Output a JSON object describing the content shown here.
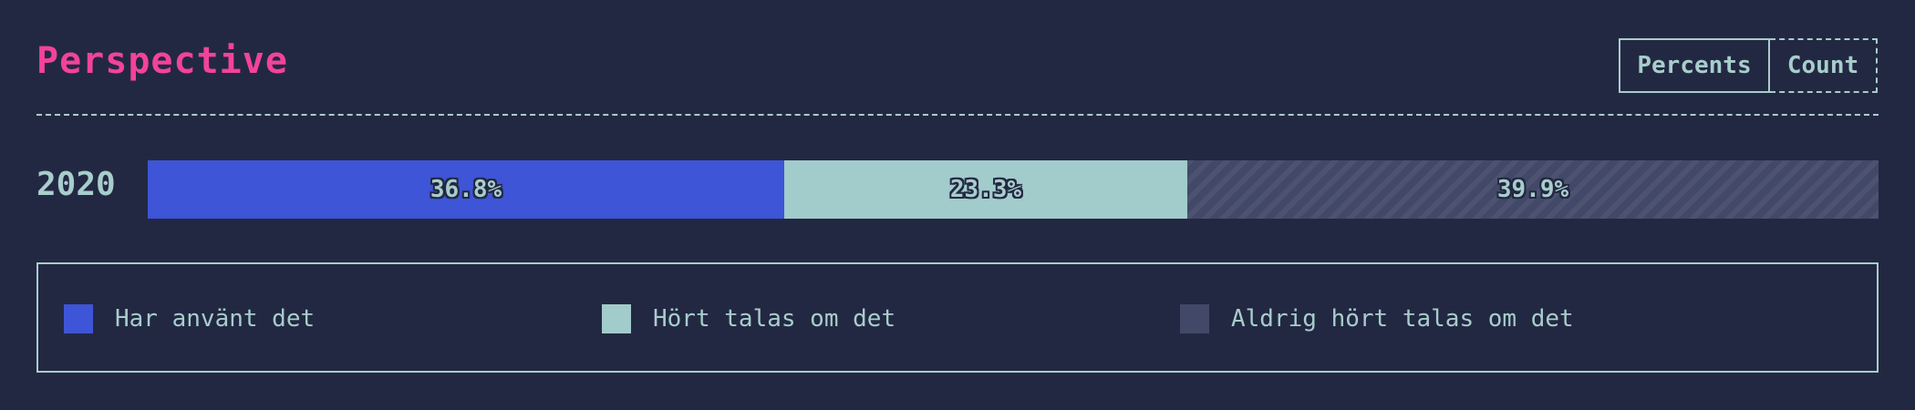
{
  "chart_data": {
    "type": "bar",
    "title": "Perspective",
    "orientation": "horizontal",
    "stacked": true,
    "normalized": true,
    "categories": [
      "2020"
    ],
    "unit": "%",
    "series": [
      {
        "name": "Har använt det",
        "values": [
          36.8
        ],
        "label": "36.8%",
        "color": "#3d55d6"
      },
      {
        "name": "Hört talas om det",
        "values": [
          23.3
        ],
        "label": "23.3%",
        "color": "#a2cbcc"
      },
      {
        "name": "Aldrig hört talas om det",
        "values": [
          39.9
        ],
        "label": "39.9%",
        "color": "#424968"
      }
    ],
    "legend": "bottom",
    "grid": false
  },
  "controls": {
    "percents_label": "Percents",
    "count_label": "Count"
  },
  "colors": {
    "background": "#232842",
    "title": "#f2439a",
    "text": "#a7cdcc"
  }
}
